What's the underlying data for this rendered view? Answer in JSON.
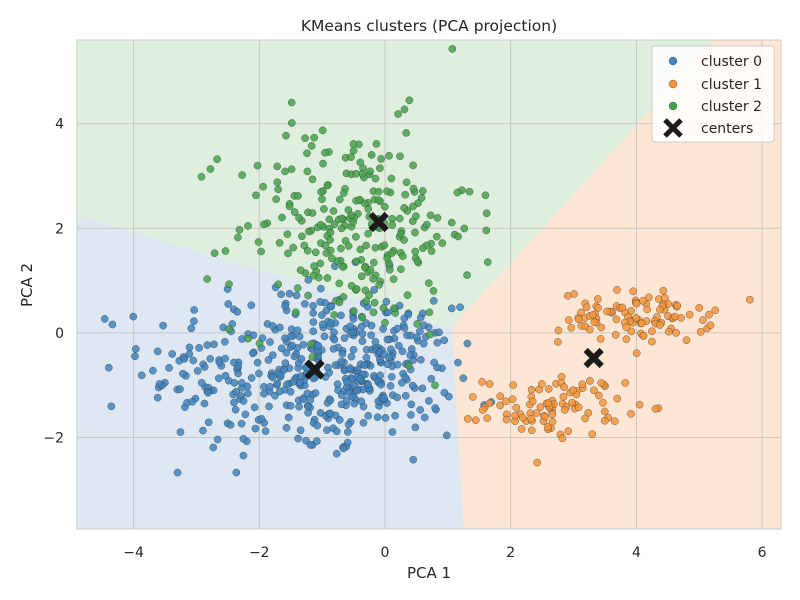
{
  "chart_data": {
    "type": "scatter",
    "title": "KMeans clusters (PCA projection)",
    "xlabel": "PCA 1",
    "ylabel": "PCA 2",
    "xlim": [
      -4.9,
      6.3
    ],
    "ylim": [
      -3.75,
      5.6
    ],
    "xticks": [
      -4,
      -2,
      0,
      2,
      4,
      6
    ],
    "yticks": [
      -2,
      0,
      2,
      4
    ],
    "xtick_labels": [
      "−4",
      "−2",
      "0",
      "2",
      "4",
      "6"
    ],
    "ytick_labels": [
      "−2",
      "0",
      "2",
      "4"
    ],
    "grid": true,
    "legend_position": "top-right",
    "colors": {
      "cluster 0": "#3f84be",
      "cluster 1": "#f5953a",
      "cluster 2": "#45a34a",
      "centers": "#1a1a1a",
      "region 0": "#dde8f3",
      "region 1": "#fde6d3",
      "region 2": "#dfefdd",
      "plot_border": "#cccccc",
      "grid": "#c8c8c8"
    },
    "series": [
      {
        "name": "cluster 0",
        "clusters": [
          {
            "center": [
              -1.5,
              -0.7
            ],
            "spread": [
              1.15,
              0.85
            ],
            "count": 330
          },
          {
            "center": [
              -0.1,
              -0.7
            ],
            "spread": [
              0.6,
              0.6
            ],
            "count": 150
          }
        ]
      },
      {
        "name": "cluster 1",
        "clusters": [
          {
            "center": [
              4.0,
              0.3
            ],
            "spread": [
              0.6,
              0.25
            ],
            "count": 100
          },
          {
            "center": [
              2.7,
              -1.4
            ],
            "spread": [
              0.55,
              0.28
            ],
            "count": 95
          }
        ]
      },
      {
        "name": "cluster 2",
        "clusters": [
          {
            "center": [
              -0.5,
              2.0
            ],
            "spread": [
              0.95,
              1.0
            ],
            "count": 270
          }
        ]
      },
      {
        "name": "centers",
        "points": [
          [
            -1.12,
            -0.7
          ],
          [
            3.32,
            -0.48
          ],
          [
            -0.1,
            2.12
          ]
        ]
      }
    ],
    "legend": [
      "cluster 0",
      "cluster 1",
      "cluster 2",
      "centers"
    ]
  }
}
